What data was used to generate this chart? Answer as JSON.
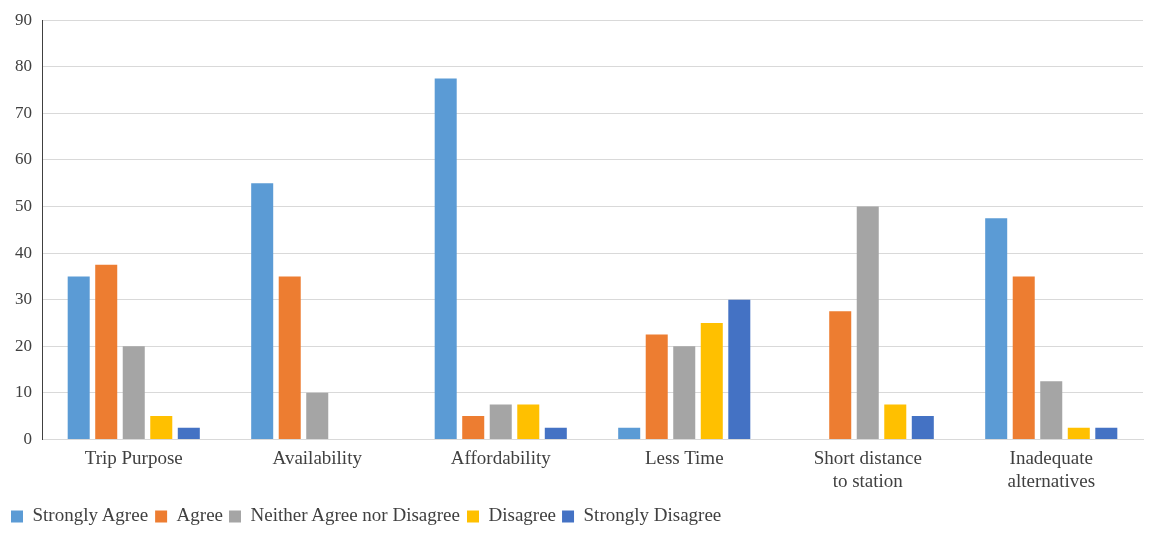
{
  "chart_data": {
    "type": "bar",
    "categories": [
      "Trip Purpose",
      "Availability",
      "Affordability",
      "Less Time",
      "Short distance to station",
      "Inadequate alternatives"
    ],
    "series": [
      {
        "name": "Strongly Agree",
        "color": "#5b9bd5",
        "values": [
          35,
          55,
          77.5,
          2.5,
          0,
          47.5
        ]
      },
      {
        "name": "Agree",
        "color": "#ed7d31",
        "values": [
          37.5,
          35,
          5,
          22.5,
          27.5,
          35
        ]
      },
      {
        "name": "Neither Agree nor Disagree",
        "color": "#a5a5a5",
        "values": [
          20,
          10,
          7.5,
          20,
          50,
          12.5
        ]
      },
      {
        "name": "Disagree",
        "color": "#ffc000",
        "values": [
          5,
          0,
          7.5,
          25,
          7.5,
          2.5
        ]
      },
      {
        "name": "Strongly Disagree",
        "color": "#4472c4",
        "values": [
          2.5,
          0,
          2.5,
          30,
          5,
          2.5
        ]
      }
    ],
    "ylim": [
      0,
      90
    ],
    "yticks": [
      0,
      10,
      20,
      30,
      40,
      50,
      60,
      70,
      80,
      90
    ],
    "grid": "y",
    "legend": "bottom"
  }
}
